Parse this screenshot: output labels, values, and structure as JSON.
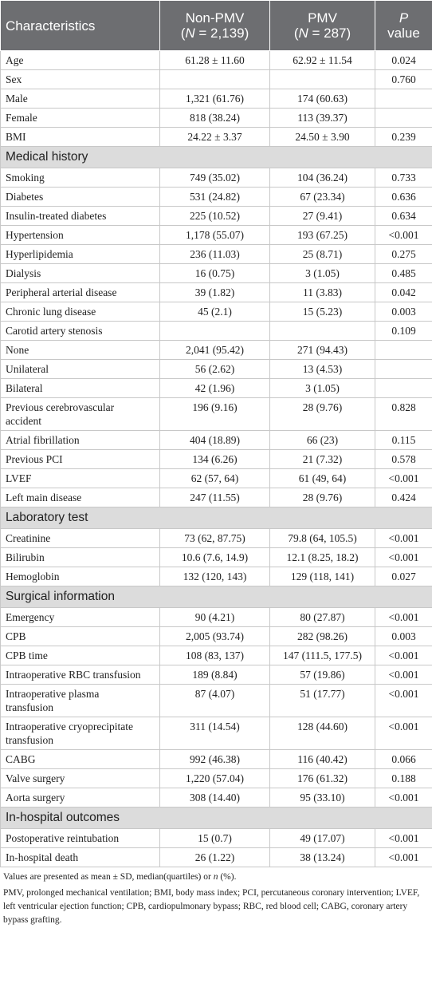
{
  "table": {
    "header": {
      "characteristics": "Characteristics",
      "non_pmv": {
        "title": "Non-PMV",
        "sub": [
          "(",
          "N",
          " = 2,139)"
        ]
      },
      "pmv": {
        "title": "PMV",
        "sub": [
          "(",
          "N",
          " = 287)"
        ]
      },
      "p": [
        "P",
        "value"
      ]
    },
    "sections": [
      {
        "rows": [
          [
            "Age",
            "61.28 ± 11.60",
            "62.92 ± 11.54",
            "0.024"
          ],
          [
            "Sex",
            null,
            null,
            "0.760"
          ],
          [
            "Male",
            "1,321 (61.76)",
            "174 (60.63)",
            null
          ],
          [
            "Female",
            "818 (38.24)",
            "113 (39.37)",
            null
          ],
          [
            "BMI",
            "24.22 ± 3.37",
            "24.50 ± 3.90",
            "0.239"
          ]
        ]
      },
      {
        "title": "Medical history",
        "rows": [
          [
            "Smoking",
            "749 (35.02)",
            "104 (36.24)",
            "0.733"
          ],
          [
            "Diabetes",
            "531 (24.82)",
            "67 (23.34)",
            "0.636"
          ],
          [
            "Insulin-treated diabetes",
            "225 (10.52)",
            "27 (9.41)",
            "0.634"
          ],
          [
            "Hypertension",
            "1,178 (55.07)",
            "193 (67.25)",
            "<0.001"
          ],
          [
            "Hyperlipidemia",
            "236 (11.03)",
            "25 (8.71)",
            "0.275"
          ],
          [
            "Dialysis",
            "16 (0.75)",
            "3 (1.05)",
            "0.485"
          ],
          [
            "Peripheral arterial disease",
            "39 (1.82)",
            "11 (3.83)",
            "0.042"
          ],
          [
            "Chronic lung disease",
            "45 (2.1)",
            "15 (5.23)",
            "0.003"
          ],
          [
            "Carotid artery stenosis",
            null,
            null,
            "0.109"
          ],
          [
            "None",
            "2,041 (95.42)",
            "271 (94.43)",
            null
          ],
          [
            "Unilateral",
            "56 (2.62)",
            "13 (4.53)",
            null
          ],
          [
            "Bilateral",
            "42 (1.96)",
            "3 (1.05)",
            null
          ],
          [
            "Previous cerebrovascular accident",
            "196 (9.16)",
            "28 (9.76)",
            "0.828"
          ],
          [
            "Atrial fibrillation",
            "404 (18.89)",
            "66 (23)",
            "0.115"
          ],
          [
            "Previous PCI",
            "134 (6.26)",
            "21 (7.32)",
            "0.578"
          ],
          [
            "LVEF",
            "62 (57, 64)",
            "61 (49, 64)",
            "<0.001"
          ],
          [
            "Left main disease",
            "247 (11.55)",
            "28 (9.76)",
            "0.424"
          ]
        ]
      },
      {
        "title": "Laboratory test",
        "rows": [
          [
            "Creatinine",
            "73 (62, 87.75)",
            "79.8 (64, 105.5)",
            "<0.001"
          ],
          [
            "Bilirubin",
            "10.6 (7.6, 14.9)",
            "12.1 (8.25, 18.2)",
            "<0.001"
          ],
          [
            "Hemoglobin",
            "132 (120, 143)",
            "129 (118, 141)",
            "0.027"
          ]
        ]
      },
      {
        "title": "Surgical information",
        "rows": [
          [
            "Emergency",
            "90 (4.21)",
            "80 (27.87)",
            "<0.001"
          ],
          [
            "CPB",
            "2,005 (93.74)",
            "282 (98.26)",
            "0.003"
          ],
          [
            "CPB time",
            "108 (83, 137)",
            "147 (111.5, 177.5)",
            "<0.001"
          ],
          [
            "Intraoperative RBC transfusion",
            "189 (8.84)",
            "57 (19.86)",
            "<0.001"
          ],
          [
            "Intraoperative plasma transfusion",
            "87 (4.07)",
            "51 (17.77)",
            "<0.001"
          ],
          [
            "Intraoperative cryoprecipitate transfusion",
            "311 (14.54)",
            "128 (44.60)",
            "<0.001"
          ],
          [
            "CABG",
            "992 (46.38)",
            "116 (40.42)",
            "0.066"
          ],
          [
            "Valve surgery",
            "1,220 (57.04)",
            "176 (61.32)",
            "0.188"
          ],
          [
            "Aorta surgery",
            "308 (14.40)",
            "95 (33.10)",
            "<0.001"
          ]
        ]
      },
      {
        "title": "In-hospital outcomes",
        "rows": [
          [
            "Postoperative reintubation",
            "15 (0.7)",
            "49 (17.07)",
            "<0.001"
          ],
          [
            "In-hospital death",
            "26 (1.22)",
            "38 (13.24)",
            "<0.001"
          ]
        ]
      }
    ],
    "footnotes": {
      "first": [
        "Values are presented as mean ± SD, median(quartiles) or ",
        "n",
        " (%)."
      ],
      "second": "PMV, prolonged mechanical ventilation; BMI, body mass index; PCI, percutaneous coronary intervention; LVEF, left ventricular ejection function; CPB, cardiopulmonary bypass; RBC, red blood cell; CABG, coronary artery bypass grafting."
    }
  }
}
